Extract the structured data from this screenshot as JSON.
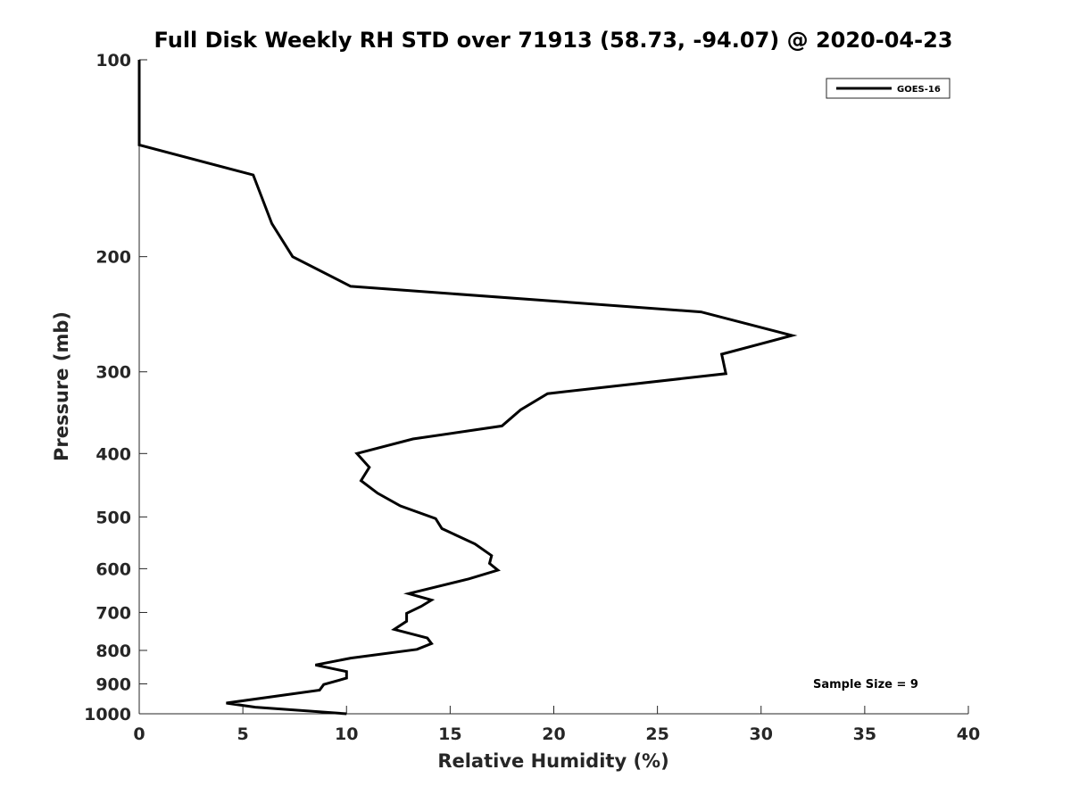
{
  "chart_data": {
    "type": "line",
    "title": "Full Disk Weekly RH STD over 71913 (58.73, -94.07) @ 2020-04-23",
    "xlabel": "Relative Humidity (%)",
    "ylabel": "Pressure (mb)",
    "xlim": [
      0,
      40
    ],
    "ylim": [
      1000,
      100
    ],
    "yscale": "log",
    "x_ticks": [
      0,
      5,
      10,
      15,
      20,
      25,
      30,
      35,
      40
    ],
    "y_ticks": [
      100,
      200,
      300,
      400,
      500,
      600,
      700,
      800,
      900,
      1000
    ],
    "grid": false,
    "legend_position": "top-right",
    "annotation": "Sample Size = 9",
    "series": [
      {
        "name": "GOES-16",
        "color": "#000000",
        "points": [
          [
            0.0,
            100
          ],
          [
            0.0,
            135
          ],
          [
            5.5,
            150
          ],
          [
            6.4,
            178
          ],
          [
            7.4,
            200
          ],
          [
            10.2,
            222
          ],
          [
            27.1,
            243
          ],
          [
            31.5,
            264
          ],
          [
            28.1,
            282
          ],
          [
            28.3,
            302
          ],
          [
            19.7,
            324
          ],
          [
            18.4,
            343
          ],
          [
            17.5,
            363
          ],
          [
            13.2,
            380
          ],
          [
            10.5,
            400
          ],
          [
            11.1,
            420
          ],
          [
            10.7,
            440
          ],
          [
            11.5,
            460
          ],
          [
            12.6,
            481
          ],
          [
            14.3,
            503
          ],
          [
            14.6,
            521
          ],
          [
            16.2,
            550
          ],
          [
            17.0,
            573
          ],
          [
            16.9,
            589
          ],
          [
            17.3,
            603
          ],
          [
            15.9,
            622
          ],
          [
            13.0,
            655
          ],
          [
            14.1,
            670
          ],
          [
            13.6,
            685
          ],
          [
            12.9,
            702
          ],
          [
            12.9,
            722
          ],
          [
            12.3,
            743
          ],
          [
            13.9,
            766
          ],
          [
            14.1,
            781
          ],
          [
            13.4,
            797
          ],
          [
            10.2,
            822
          ],
          [
            8.5,
            842
          ],
          [
            10.0,
            862
          ],
          [
            10.0,
            882
          ],
          [
            8.9,
            902
          ],
          [
            8.7,
            920
          ],
          [
            4.2,
            963
          ],
          [
            5.6,
            977
          ],
          [
            10.0,
            1000
          ]
        ]
      }
    ]
  }
}
